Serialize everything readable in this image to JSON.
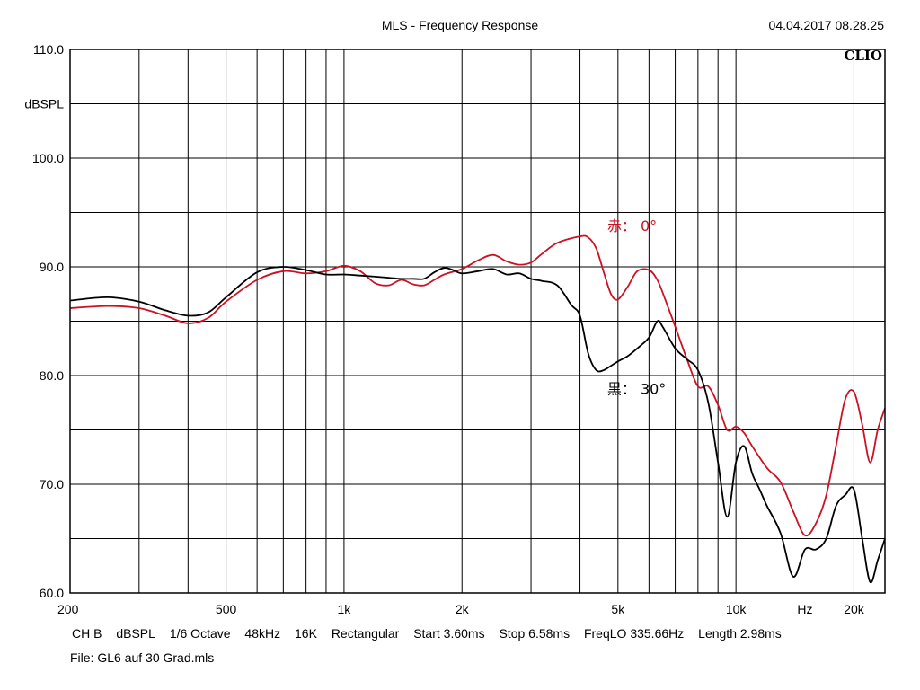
{
  "header": {
    "title": "MLS - Frequency Response",
    "timestamp": "04.04.2017 08.28.25",
    "brand": "CLIO"
  },
  "status_bar": {
    "items": [
      "CH B",
      "dBSPL",
      "1/6 Octave",
      "48kHz",
      "16K",
      "Rectangular",
      "Start 3.60ms",
      "Stop 6.58ms",
      "FreqLO 335.66Hz",
      "Length 2.98ms"
    ],
    "file": "File: GL6 auf 30 Grad.mls"
  },
  "colors": {
    "red_series": "#cc1122",
    "black_series": "#000000",
    "grid": "#000000"
  },
  "chart_data": {
    "type": "line",
    "title": "MLS - Frequency Response",
    "xlabel": "Hz",
    "ylabel": "dBSPL",
    "xscale": "log",
    "xlim": [
      200,
      24000
    ],
    "ylim": [
      60,
      110
    ],
    "grid": true,
    "x_ticks": [
      {
        "value": 200,
        "label": "200"
      },
      {
        "value": 500,
        "label": "500"
      },
      {
        "value": 1000,
        "label": "1k"
      },
      {
        "value": 2000,
        "label": "2k"
      },
      {
        "value": 5000,
        "label": "5k"
      },
      {
        "value": 10000,
        "label": "10k"
      },
      {
        "value": 15000,
        "label": "Hz"
      },
      {
        "value": 20000,
        "label": "20k"
      }
    ],
    "y_ticks": [
      {
        "value": 110,
        "label": "110.0"
      },
      {
        "value": 105,
        "label": "dBSPL"
      },
      {
        "value": 100,
        "label": "100.0"
      },
      {
        "value": 90,
        "label": "90.0"
      },
      {
        "value": 80,
        "label": "80.0"
      },
      {
        "value": 70,
        "label": "70.0"
      },
      {
        "value": 60,
        "label": "60.0"
      }
    ],
    "y_gridlines": [
      65,
      75,
      85,
      95,
      105
    ],
    "annotations": [
      {
        "text": "赤： 0°",
        "x": 4500,
        "y": 93.7,
        "color": "#cc1122"
      },
      {
        "text": "黒： 30°",
        "x": 4500,
        "y": 78.7,
        "color": "#000000"
      }
    ],
    "series": [
      {
        "color": "#cc1122",
        "x": [
          200,
          250,
          300,
          350,
          400,
          450,
          500,
          600,
          700,
          800,
          900,
          1000,
          1100,
          1200,
          1300,
          1400,
          1500,
          1600,
          1700,
          1800,
          2000,
          2200,
          2400,
          2600,
          2800,
          3000,
          3200,
          3500,
          4000,
          4200,
          4400,
          4600,
          4800,
          5000,
          5300,
          5600,
          6000,
          6300,
          6600,
          7000,
          7500,
          8000,
          8500,
          9000,
          9500,
          10000,
          10500,
          11000,
          12000,
          13000,
          14000,
          15000,
          16000,
          17000,
          18000,
          19000,
          20000,
          21000,
          22000,
          23000,
          24000
        ],
        "y": [
          86.2,
          86.4,
          86.2,
          85.5,
          84.8,
          85.3,
          86.8,
          88.8,
          89.6,
          89.4,
          89.6,
          90.1,
          89.6,
          88.5,
          88.3,
          88.8,
          88.4,
          88.3,
          88.8,
          89.3,
          89.8,
          90.6,
          91.1,
          90.5,
          90.2,
          90.4,
          91.2,
          92.2,
          92.8,
          92.7,
          91.7,
          89.5,
          87.5,
          87.0,
          88.2,
          89.6,
          89.7,
          88.8,
          87.0,
          84.5,
          81.5,
          79.0,
          79.0,
          77.3,
          75.0,
          75.3,
          74.7,
          73.5,
          71.5,
          70.2,
          67.5,
          65.3,
          66.4,
          69.0,
          73.5,
          77.8,
          78.5,
          75.5,
          72.0,
          75.0,
          77.0
        ]
      },
      {
        "color": "#000000",
        "x": [
          200,
          250,
          300,
          350,
          400,
          450,
          500,
          600,
          700,
          800,
          900,
          1000,
          1100,
          1200,
          1300,
          1400,
          1500,
          1600,
          1700,
          1800,
          1900,
          2000,
          2200,
          2400,
          2600,
          2800,
          3000,
          3200,
          3500,
          3800,
          4000,
          4200,
          4400,
          4600,
          4800,
          5000,
          5300,
          5600,
          6000,
          6300,
          6500,
          7000,
          7500,
          8000,
          8500,
          9000,
          9500,
          10000,
          10500,
          11000,
          11500,
          12000,
          13000,
          14000,
          15000,
          16000,
          17000,
          18000,
          19000,
          20000,
          21000,
          22000,
          23000,
          24000
        ],
        "y": [
          86.9,
          87.2,
          86.8,
          86.0,
          85.5,
          85.8,
          87.2,
          89.5,
          90.0,
          89.7,
          89.3,
          89.3,
          89.2,
          89.1,
          89.0,
          88.9,
          88.9,
          88.9,
          89.5,
          89.9,
          89.7,
          89.4,
          89.6,
          89.8,
          89.3,
          89.4,
          88.9,
          88.7,
          88.3,
          86.5,
          85.5,
          82.0,
          80.5,
          80.5,
          80.9,
          81.3,
          81.8,
          82.5,
          83.5,
          85.0,
          84.5,
          82.5,
          81.5,
          80.5,
          77.5,
          72.0,
          67.0,
          72.0,
          73.5,
          71.0,
          69.5,
          68.0,
          65.5,
          61.5,
          64.0,
          64.0,
          65.0,
          68.0,
          69.0,
          69.5,
          65.0,
          61.0,
          63.0,
          65.0
        ]
      }
    ]
  }
}
